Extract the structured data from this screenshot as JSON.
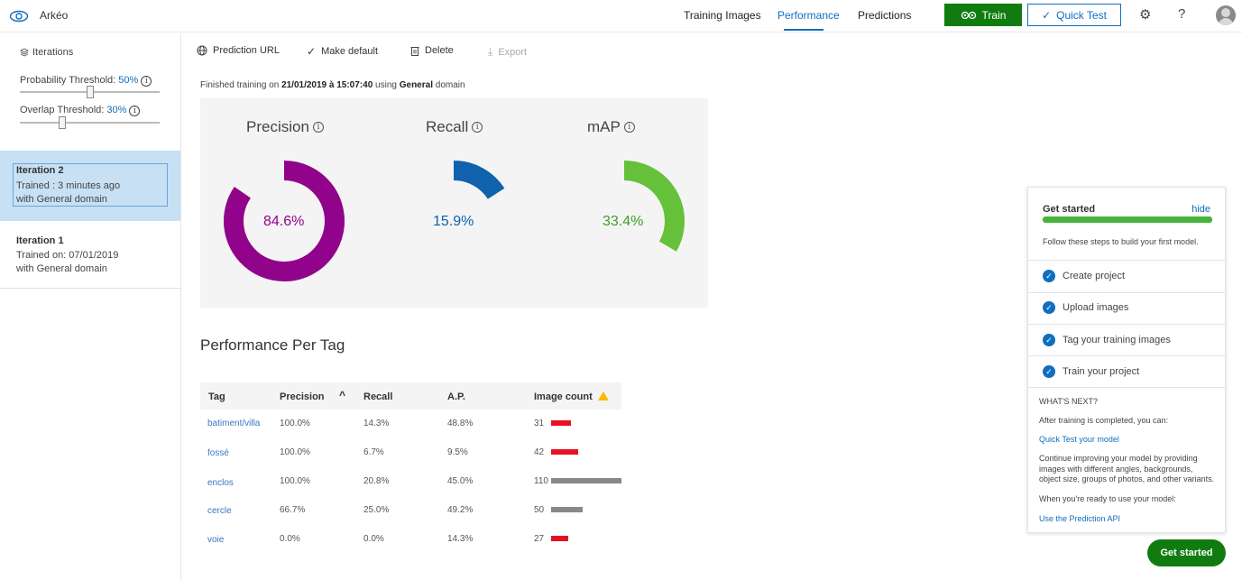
{
  "app": {
    "name": "Arkéo",
    "logo_icon": "eye-icon"
  },
  "nav": {
    "tabs": [
      {
        "label": "Training Images",
        "active": false
      },
      {
        "label": "Performance",
        "active": true
      },
      {
        "label": "Predictions",
        "active": false
      }
    ],
    "train_label": "Train",
    "train_icon": "gears-icon",
    "quick_test_label": "Quick Test",
    "quick_test_icon": "check-icon",
    "settings_icon": "gear-icon",
    "help_label": "?",
    "avatar_icon": "user-avatar-icon"
  },
  "sidebar": {
    "title": "Iterations",
    "title_icon": "layers-icon",
    "probability": {
      "label": "Probability Threshold: ",
      "value": "50%",
      "fraction": 0.5
    },
    "overlap": {
      "label": "Overlap Threshold: ",
      "value": "30%",
      "fraction": 0.3
    },
    "iterations": [
      {
        "name": "Iteration 2",
        "line1": "Trained : 3 minutes ago",
        "line2": "with General domain",
        "selected": true
      },
      {
        "name": "Iteration 1",
        "line1": "Trained on: 07/01/2019",
        "line2": "with General domain",
        "selected": false
      }
    ]
  },
  "toolbar": {
    "prediction_url": "Prediction URL",
    "make_default": "Make default",
    "delete": "Delete",
    "export": "Export"
  },
  "finished": {
    "prefix": "Finished training on ",
    "date": "21/01/2019 à 15:07:40",
    "middle": " using ",
    "domain": "General",
    "suffix": " domain"
  },
  "metrics": [
    {
      "title": "Precision",
      "value": "84.6%",
      "fraction": 0.846,
      "color": "#92038b"
    },
    {
      "title": "Recall",
      "value": "15.9%",
      "fraction": 0.159,
      "color": "#0f62ab"
    },
    {
      "title": "mAP",
      "value": "33.4%",
      "fraction": 0.334,
      "color": "#65c03a"
    }
  ],
  "per_tag": {
    "title": "Performance Per Tag",
    "headers": [
      "Tag",
      "Precision",
      "Recall",
      "A.P.",
      "Image count"
    ],
    "sort_icon": "caret-up-icon",
    "warning_icon": "warning-icon",
    "rows": [
      {
        "tag": "batiment/villa",
        "precision": "100.0%",
        "recall": "14.3%",
        "ap": "48.8%",
        "count": "31",
        "count_value": 31,
        "bar_color": "#e81123"
      },
      {
        "tag": "fossé",
        "precision": "100.0%",
        "recall": "6.7%",
        "ap": "9.5%",
        "count": "42",
        "count_value": 42,
        "bar_color": "#e81123"
      },
      {
        "tag": "enclos",
        "precision": "100.0%",
        "recall": "20.8%",
        "ap": "45.0%",
        "count": "110",
        "count_value": 110,
        "bar_color": "#888888"
      },
      {
        "tag": "cercle",
        "precision": "66.7%",
        "recall": "25.0%",
        "ap": "49.2%",
        "count": "50",
        "count_value": 50,
        "bar_color": "#888888"
      },
      {
        "tag": "voie",
        "precision": "0.0%",
        "recall": "0.0%",
        "ap": "14.3%",
        "count": "27",
        "count_value": 27,
        "bar_color": "#e81123"
      }
    ]
  },
  "get_started": {
    "title": "Get started",
    "hide": "hide",
    "progress": 1.0,
    "subtitle": "Follow these steps to build your first model.",
    "steps": [
      "Create project",
      "Upload images",
      "Tag your training images",
      "Train your project"
    ],
    "whats_next": "WHAT'S NEXT?",
    "after_training": "After training is completed, you can:",
    "quick_test_link": "Quick Test your model",
    "continue_text": "Continue improving your model by providing images with different angles, backgrounds, object size, groups of photos, and other variants.",
    "ready_text": "When you're ready to use your model:",
    "api_link": "Use the Prediction API",
    "button": "Get started"
  }
}
